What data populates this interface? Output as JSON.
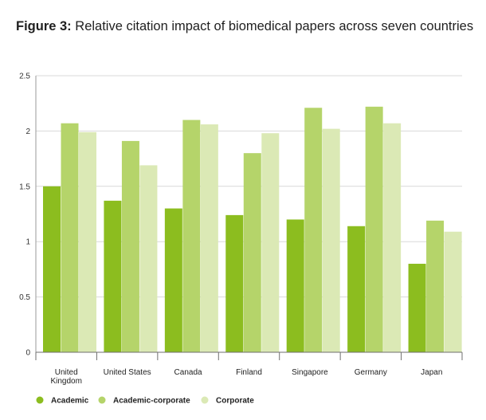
{
  "figure": {
    "label": "Figure 3:",
    "title": "Relative citation impact of biomedical papers across seven countries"
  },
  "chart_data": {
    "type": "bar",
    "categories": [
      [
        "United",
        "Kingdom"
      ],
      [
        "United States"
      ],
      [
        "Canada"
      ],
      [
        "Finland"
      ],
      [
        "Singapore"
      ],
      [
        "Germany"
      ],
      [
        "Japan"
      ]
    ],
    "series": [
      {
        "name": "Academic",
        "color": "#8cbd1f",
        "values": [
          1.5,
          1.37,
          1.3,
          1.24,
          1.2,
          1.14,
          0.8
        ]
      },
      {
        "name": "Academic-corporate",
        "color": "#b5d46a",
        "values": [
          2.07,
          1.91,
          2.1,
          1.8,
          2.21,
          2.22,
          1.19
        ]
      },
      {
        "name": "Corporate",
        "color": "#dbe9b5",
        "values": [
          1.99,
          1.69,
          2.06,
          1.98,
          2.02,
          2.07,
          1.09
        ]
      }
    ],
    "ylim": [
      0,
      2.5
    ],
    "yticks": [
      "0",
      "0.5",
      "1",
      "1.5",
      "2",
      "2.5"
    ],
    "ytick_values": [
      0,
      0.5,
      1,
      1.5,
      2,
      2.5
    ],
    "grid": true,
    "legend_position": "bottom-left"
  }
}
